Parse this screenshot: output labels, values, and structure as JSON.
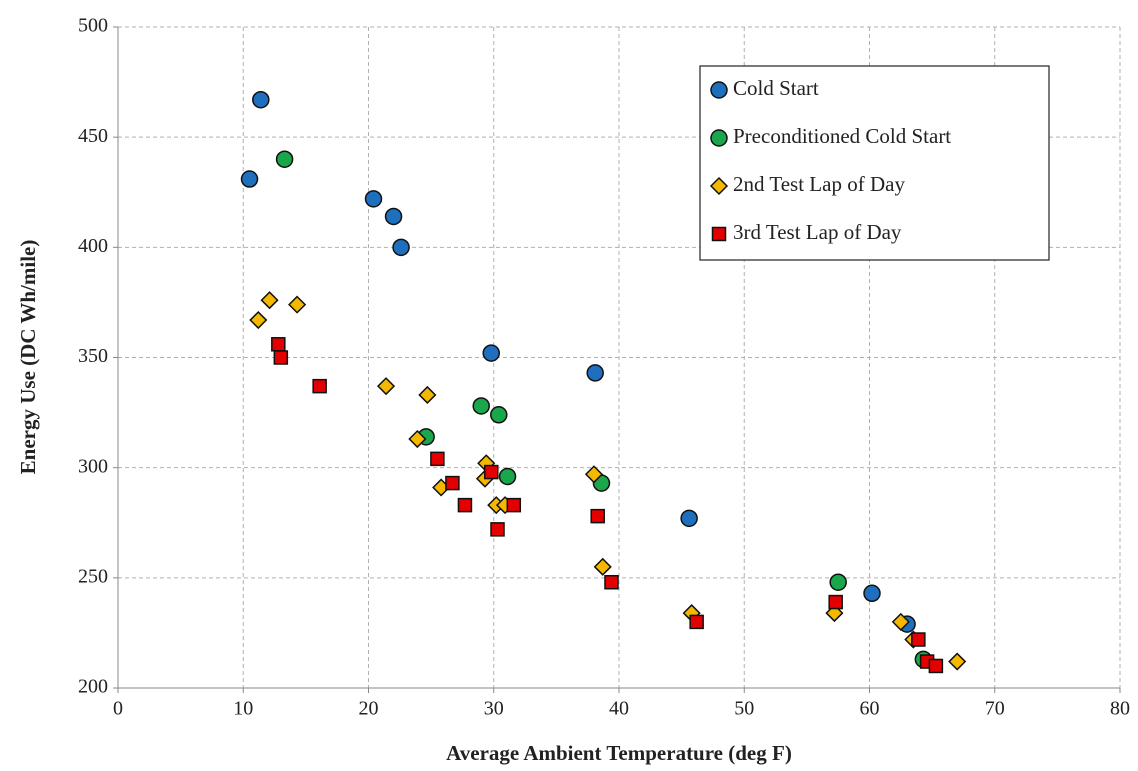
{
  "chart_data": {
    "type": "scatter",
    "x_label": "Average Ambient Temperature (deg F)",
    "y_label": "Energy Use (DC Wh/mile)",
    "xlim": [
      0,
      80
    ],
    "xticks": [
      0,
      10,
      20,
      30,
      40,
      50,
      60,
      70,
      80
    ],
    "ylim": [
      200,
      500
    ],
    "yticks": [
      200,
      250,
      300,
      350,
      400,
      450,
      500
    ],
    "grid": true,
    "legend": "top-right",
    "series": [
      {
        "name": "Cold Start",
        "color": "#1f6fbf",
        "marker": "circle",
        "x": [
          10.5,
          11.4,
          20.4,
          22.0,
          22.6,
          29.8,
          38.1,
          45.6,
          60.2,
          63.0
        ],
        "values": [
          431,
          467,
          422,
          414,
          400,
          352,
          343,
          277,
          243,
          229
        ]
      },
      {
        "name": "Preconditioned Cold Start",
        "color": "#1aa64a",
        "marker": "circle",
        "x": [
          13.3,
          24.6,
          29.0,
          30.4,
          31.1,
          38.6,
          57.5,
          64.3
        ],
        "values": [
          440,
          314,
          328,
          324,
          296,
          293,
          248,
          213
        ]
      },
      {
        "name": "2nd Test Lap of Day",
        "color": "#f5b800",
        "marker": "diamond",
        "x": [
          11.2,
          12.1,
          14.3,
          21.4,
          24.7,
          23.9,
          25.8,
          29.4,
          29.3,
          30.2,
          30.9,
          38.0,
          38.7,
          45.8,
          57.2,
          62.5,
          63.5,
          67.0
        ],
        "values": [
          367,
          376,
          374,
          337,
          333,
          313,
          291,
          302,
          295,
          283,
          283,
          297,
          255,
          234,
          234,
          230,
          222,
          212
        ]
      },
      {
        "name": "3rd Test Lap of Day",
        "color": "#e30000",
        "marker": "square",
        "x": [
          12.8,
          13.0,
          16.1,
          25.5,
          26.7,
          27.7,
          29.8,
          30.3,
          31.6,
          38.3,
          39.4,
          46.2,
          57.3,
          63.9,
          64.6,
          65.3
        ],
        "values": [
          356,
          350,
          337,
          304,
          293,
          283,
          298,
          272,
          283,
          278,
          248,
          230,
          239,
          222,
          212,
          210
        ]
      }
    ]
  }
}
